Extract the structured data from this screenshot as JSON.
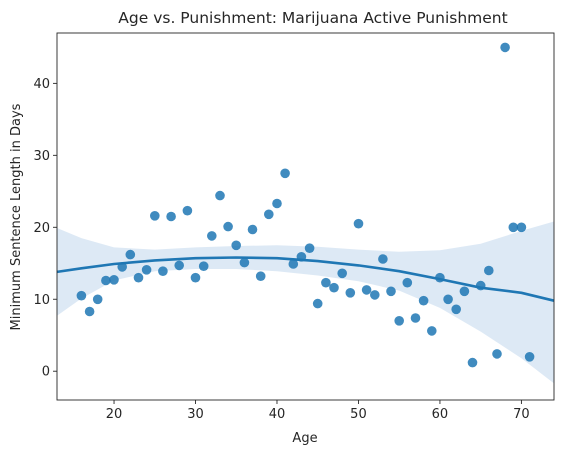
{
  "chart_data": {
    "type": "scatter",
    "title": "Age vs. Punishment: Marijuana Active Punishment",
    "xlabel": "Age",
    "ylabel": "Minimum Sentence Length in Days",
    "xlim": [
      13,
      74
    ],
    "ylim": [
      -4,
      47
    ],
    "xticks": [
      20,
      30,
      40,
      50,
      60,
      70
    ],
    "yticks": [
      0,
      10,
      20,
      30,
      40
    ],
    "point_color": "#1f77b4",
    "line_color": "#1f77b4",
    "band_color": "#c6dbef",
    "grid": false,
    "points": [
      {
        "x": 16,
        "y": 10.5
      },
      {
        "x": 17,
        "y": 8.3
      },
      {
        "x": 18,
        "y": 10.0
      },
      {
        "x": 19,
        "y": 12.6
      },
      {
        "x": 20,
        "y": 12.7
      },
      {
        "x": 21,
        "y": 14.5
      },
      {
        "x": 22,
        "y": 16.2
      },
      {
        "x": 23,
        "y": 13.0
      },
      {
        "x": 24,
        "y": 14.1
      },
      {
        "x": 25,
        "y": 21.6
      },
      {
        "x": 26,
        "y": 13.9
      },
      {
        "x": 27,
        "y": 21.5
      },
      {
        "x": 28,
        "y": 14.7
      },
      {
        "x": 29,
        "y": 22.3
      },
      {
        "x": 30,
        "y": 13.0
      },
      {
        "x": 31,
        "y": 14.6
      },
      {
        "x": 32,
        "y": 18.8
      },
      {
        "x": 33,
        "y": 24.4
      },
      {
        "x": 34,
        "y": 20.1
      },
      {
        "x": 35,
        "y": 17.5
      },
      {
        "x": 36,
        "y": 15.1
      },
      {
        "x": 37,
        "y": 19.7
      },
      {
        "x": 38,
        "y": 13.2
      },
      {
        "x": 39,
        "y": 21.8
      },
      {
        "x": 40,
        "y": 23.3
      },
      {
        "x": 41,
        "y": 27.5
      },
      {
        "x": 42,
        "y": 14.9
      },
      {
        "x": 43,
        "y": 15.9
      },
      {
        "x": 44,
        "y": 17.1
      },
      {
        "x": 45,
        "y": 9.4
      },
      {
        "x": 46,
        "y": 12.3
      },
      {
        "x": 47,
        "y": 11.6
      },
      {
        "x": 48,
        "y": 13.6
      },
      {
        "x": 49,
        "y": 10.9
      },
      {
        "x": 50,
        "y": 20.5
      },
      {
        "x": 51,
        "y": 11.3
      },
      {
        "x": 52,
        "y": 10.6
      },
      {
        "x": 53,
        "y": 15.6
      },
      {
        "x": 54,
        "y": 11.1
      },
      {
        "x": 55,
        "y": 7.0
      },
      {
        "x": 56,
        "y": 12.3
      },
      {
        "x": 57,
        "y": 7.4
      },
      {
        "x": 58,
        "y": 9.8
      },
      {
        "x": 59,
        "y": 5.6
      },
      {
        "x": 60,
        "y": 13.0
      },
      {
        "x": 61,
        "y": 10.0
      },
      {
        "x": 62,
        "y": 8.6
      },
      {
        "x": 63,
        "y": 11.1
      },
      {
        "x": 64,
        "y": 1.2
      },
      {
        "x": 65,
        "y": 11.9
      },
      {
        "x": 66,
        "y": 14.0
      },
      {
        "x": 67,
        "y": 2.4
      },
      {
        "x": 68,
        "y": 45.0
      },
      {
        "x": 69,
        "y": 20.0
      },
      {
        "x": 70,
        "y": 20.0
      },
      {
        "x": 71,
        "y": 2.0
      }
    ],
    "fit_line": {
      "x": [
        13,
        16,
        20,
        25,
        30,
        35,
        40,
        45,
        50,
        55,
        60,
        65,
        70,
        74
      ],
      "y": [
        13.8,
        14.3,
        14.9,
        15.4,
        15.7,
        15.8,
        15.7,
        15.3,
        14.7,
        13.9,
        12.8,
        11.6,
        10.9,
        9.8
      ]
    },
    "confidence_band": {
      "x": [
        13,
        16,
        20,
        25,
        30,
        35,
        40,
        45,
        50,
        55,
        60,
        65,
        70,
        74
      ],
      "upper": [
        19.9,
        18.5,
        17.2,
        16.9,
        17.2,
        17.4,
        17.5,
        17.3,
        16.9,
        16.6,
        16.8,
        17.7,
        19.5,
        20.8
      ],
      "lower": [
        7.7,
        10.1,
        12.6,
        13.9,
        14.2,
        14.2,
        13.9,
        13.3,
        12.5,
        11.2,
        8.8,
        5.5,
        1.8,
        -1.7
      ]
    }
  }
}
